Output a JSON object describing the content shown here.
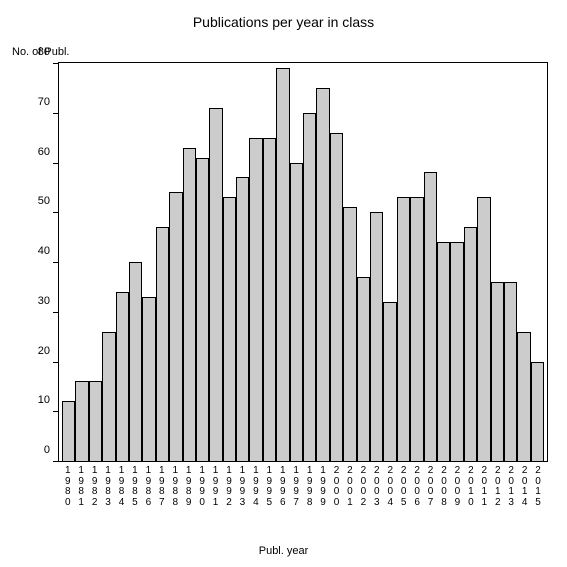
{
  "chart": {
    "type": "bar",
    "title": "Publications per year in class",
    "title_fontsize": 14,
    "y_axis_label": "No. of Publ.",
    "x_axis_label": "Publ. year",
    "label_fontsize": 11,
    "background_color": "#ffffff",
    "border_color": "#000000",
    "bar_fill": "#cccccc",
    "bar_border": "#000000",
    "bar_width": 1.0,
    "ylim": [
      0,
      80
    ],
    "ytick_step": 10,
    "y_ticks": [
      0,
      10,
      20,
      30,
      40,
      50,
      60,
      70,
      80
    ],
    "categories": [
      "1980",
      "1981",
      "1982",
      "1983",
      "1984",
      "1985",
      "1986",
      "1987",
      "1988",
      "1989",
      "1990",
      "1991",
      "1992",
      "1993",
      "1994",
      "1995",
      "1996",
      "1997",
      "1998",
      "1999",
      "2000",
      "2001",
      "2002",
      "2003",
      "2004",
      "2005",
      "2006",
      "2007",
      "2008",
      "2009",
      "2010",
      "2011",
      "2012",
      "2013",
      "2014",
      "2015"
    ],
    "values": [
      12,
      16,
      16,
      26,
      34,
      40,
      33,
      47,
      54,
      63,
      61,
      71,
      53,
      57,
      65,
      65,
      79,
      60,
      70,
      75,
      66,
      51,
      37,
      50,
      32,
      53,
      53,
      58,
      44,
      44,
      47,
      53,
      36,
      36,
      26,
      20
    ]
  }
}
